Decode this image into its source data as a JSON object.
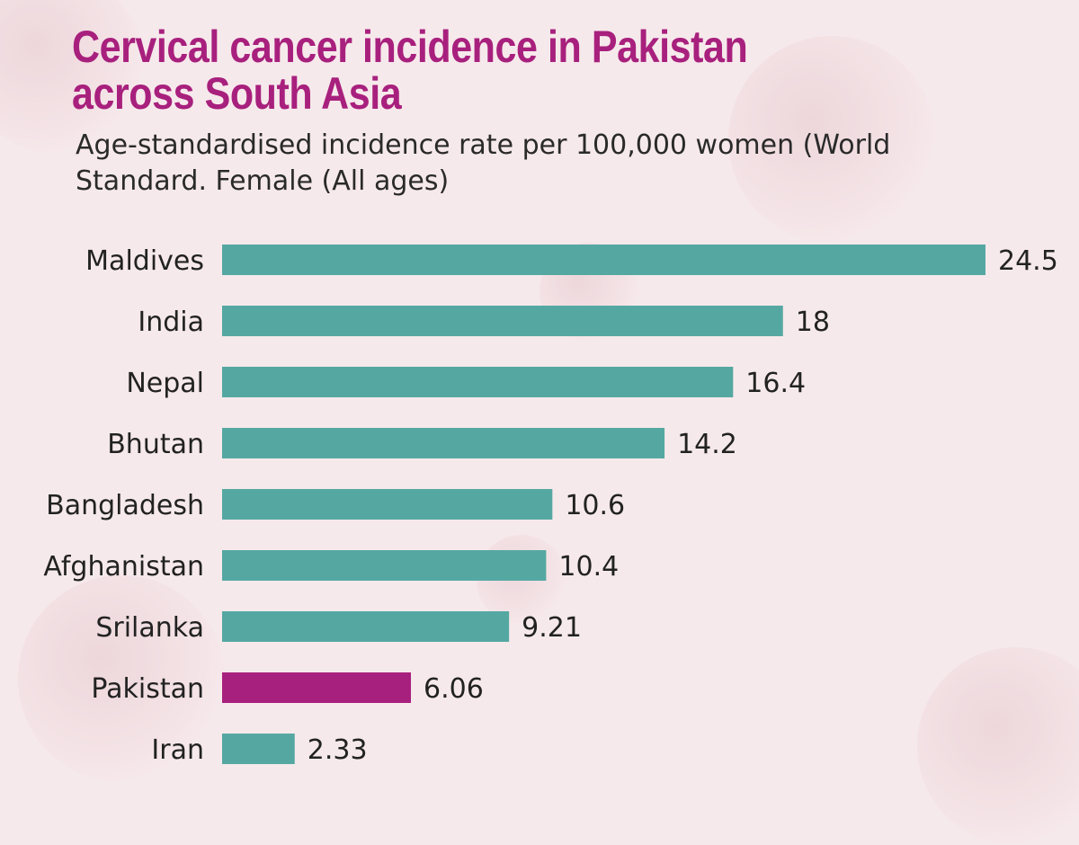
{
  "chart_data": {
    "type": "bar",
    "orientation": "horizontal",
    "title": "Cervical cancer incidence in Pakistan across South Asia",
    "subtitle": "Age-standardised incidence rate per 100,000 women (World Standard. Female (All ages)",
    "categories": [
      "Maldives",
      "India",
      "Nepal",
      "Bhutan",
      "Bangladesh",
      "Afghanistan",
      "Srilanka",
      "Pakistan",
      "Iran"
    ],
    "values": [
      24.5,
      18,
      16.4,
      14.2,
      10.6,
      10.4,
      9.21,
      6.06,
      2.33
    ],
    "value_labels": [
      "24.5",
      "18",
      "16.4",
      "14.2",
      "10.6",
      "10.4",
      "9.21",
      "6.06",
      "2.33"
    ],
    "highlight_category": "Pakistan",
    "xlim": [
      0,
      24.5
    ],
    "grid": false,
    "colors": {
      "bar": "#55a8a2",
      "highlight_bar": "#a8207d",
      "title": "#a8207d",
      "background": "#f6e9eb"
    }
  }
}
